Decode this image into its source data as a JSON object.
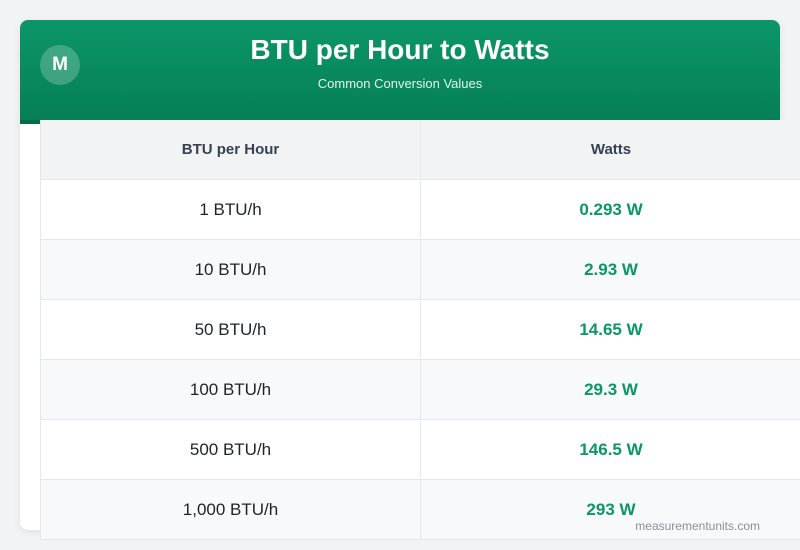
{
  "header": {
    "logo_letter": "M",
    "title": "BTU per Hour to Watts",
    "subtitle": "Common Conversion Values"
  },
  "table": {
    "columns": [
      "BTU per Hour",
      "Watts"
    ],
    "rows": [
      {
        "btu": "1 BTU/h",
        "watts": "0.293 W"
      },
      {
        "btu": "10 BTU/h",
        "watts": "2.93 W"
      },
      {
        "btu": "50 BTU/h",
        "watts": "14.65 W"
      },
      {
        "btu": "100 BTU/h",
        "watts": "29.3 W"
      },
      {
        "btu": "500 BTU/h",
        "watts": "146.5 W"
      },
      {
        "btu": "1,000 BTU/h",
        "watts": "293 W"
      }
    ]
  },
  "footer": {
    "watermark": "measurementunits.com"
  },
  "colors": {
    "brand_green": "#0b9668",
    "header_dark": "#067f56"
  }
}
